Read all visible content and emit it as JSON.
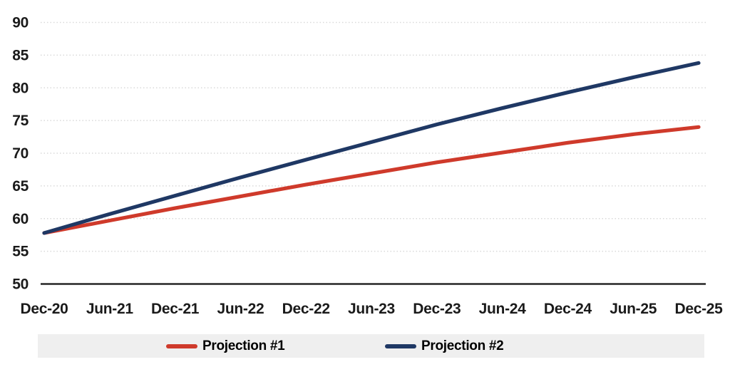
{
  "chart_data": {
    "type": "line",
    "title": "",
    "x": [
      "Dec-20",
      "Jun-21",
      "Dec-21",
      "Jun-22",
      "Dec-22",
      "Jun-23",
      "Dec-23",
      "Jun-24",
      "Dec-24",
      "Jun-25",
      "Dec-25"
    ],
    "series": [
      {
        "name": "Projection #1",
        "color": "#cf3a2b",
        "values": [
          57.8,
          59.7,
          61.6,
          63.4,
          65.2,
          66.9,
          68.6,
          70.1,
          71.6,
          72.9,
          74.0
        ]
      },
      {
        "name": "Projection #2",
        "color": "#1f3864",
        "values": [
          57.8,
          60.7,
          63.5,
          66.3,
          69.0,
          71.7,
          74.4,
          76.9,
          79.3,
          81.6,
          83.8
        ]
      }
    ],
    "xlabel": "",
    "ylabel": "",
    "ylim": [
      50,
      90
    ],
    "yticks": [
      50,
      55,
      60,
      65,
      70,
      75,
      80,
      85,
      90
    ],
    "grid": "horizontal-dotted",
    "legend_position": "bottom"
  },
  "colors": {
    "axis_line": "#262626",
    "gridline": "#d9d9d9",
    "tick_text": "#1a1a1a",
    "legend_background": "#efefef"
  }
}
